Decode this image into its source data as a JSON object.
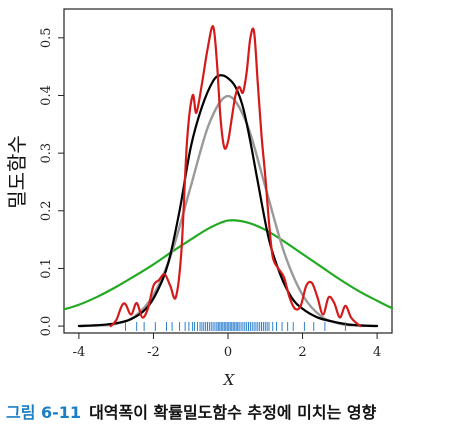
{
  "caption": {
    "number": "그림 6-11",
    "text": "대역폭이 확률밀도함수 추정에 미치는 영향"
  },
  "colors": {
    "frame": "#222222",
    "black_curve": "#000000",
    "gray_curve": "#9a9a9a",
    "red_curve": "#d41a1a",
    "green_curve": "#22aa22",
    "rug": "#2d7fd0",
    "caption_number": "#1b7fc4"
  },
  "chart_data": {
    "type": "line",
    "title": "",
    "xlabel": "X",
    "ylabel": "밀도함수",
    "xlim": [
      -4.4,
      4.4
    ],
    "ylim": [
      -0.012,
      0.55
    ],
    "x_ticks": [
      {
        "value": -4,
        "label": "-4"
      },
      {
        "value": -2,
        "label": "-2"
      },
      {
        "value": 0,
        "label": "0"
      },
      {
        "value": 2,
        "label": "2"
      },
      {
        "value": 4,
        "label": "4"
      }
    ],
    "y_ticks": [
      {
        "value": 0.0,
        "label": "0.0"
      },
      {
        "value": 0.1,
        "label": "0.1"
      },
      {
        "value": 0.2,
        "label": "0.2"
      },
      {
        "value": 0.3,
        "label": "0.3"
      },
      {
        "value": 0.4,
        "label": "0.4"
      },
      {
        "value": 0.5,
        "label": "0.5"
      }
    ],
    "grid": false,
    "legend": "none",
    "series": [
      {
        "color": "green",
        "x": [
          -4.4,
          -4.0,
          -3.5,
          -3.0,
          -2.5,
          -2.0,
          -1.5,
          -1.0,
          -0.5,
          0.0,
          0.5,
          1.0,
          1.5,
          2.0,
          2.5,
          3.0,
          3.5,
          4.0,
          4.4
        ],
        "y": [
          0.029,
          0.037,
          0.051,
          0.068,
          0.087,
          0.107,
          0.129,
          0.15,
          0.17,
          0.183,
          0.18,
          0.167,
          0.147,
          0.125,
          0.103,
          0.081,
          0.061,
          0.044,
          0.031
        ]
      },
      {
        "color": "gray",
        "x": [
          -4.0,
          -3.5,
          -3.0,
          -2.5,
          -2.0,
          -1.5,
          -1.0,
          -0.5,
          0.0,
          0.5,
          1.0,
          1.5,
          2.0,
          2.5,
          3.0,
          3.5,
          4.0
        ],
        "y": [
          0.0003,
          0.001,
          0.004,
          0.017,
          0.054,
          0.129,
          0.242,
          0.352,
          0.399,
          0.352,
          0.242,
          0.129,
          0.054,
          0.017,
          0.004,
          0.001,
          0.0003
        ]
      },
      {
        "color": "black",
        "x": [
          -4.0,
          -3.4,
          -3.0,
          -2.6,
          -2.2,
          -1.9,
          -1.6,
          -1.3,
          -1.0,
          -0.7,
          -0.4,
          -0.2,
          0.0,
          0.2,
          0.4,
          0.6,
          0.8,
          1.1,
          1.4,
          1.7,
          2.0,
          2.4,
          2.8,
          3.2,
          3.6,
          4.0
        ],
        "y": [
          0.0,
          0.002,
          0.005,
          0.012,
          0.03,
          0.06,
          0.11,
          0.2,
          0.31,
          0.38,
          0.425,
          0.435,
          0.43,
          0.415,
          0.38,
          0.32,
          0.25,
          0.15,
          0.09,
          0.05,
          0.03,
          0.015,
          0.008,
          0.003,
          0.001,
          0.0
        ]
      },
      {
        "color": "red",
        "x": [
          -3.15,
          -3.0,
          -2.85,
          -2.75,
          -2.6,
          -2.45,
          -2.3,
          -2.15,
          -2.0,
          -1.85,
          -1.7,
          -1.55,
          -1.4,
          -1.25,
          -1.1,
          -0.95,
          -0.85,
          -0.7,
          -0.55,
          -0.4,
          -0.3,
          -0.2,
          -0.1,
          0.0,
          0.1,
          0.2,
          0.3,
          0.4,
          0.5,
          0.6,
          0.7,
          0.8,
          0.9,
          1.0,
          1.1,
          1.2,
          1.35,
          1.5,
          1.65,
          1.8,
          1.95,
          2.1,
          2.25,
          2.4,
          2.55,
          2.7,
          2.85,
          3.0,
          3.15,
          3.3,
          3.45,
          3.55
        ],
        "y": [
          0.0,
          0.01,
          0.035,
          0.038,
          0.02,
          0.04,
          0.015,
          0.03,
          0.07,
          0.08,
          0.09,
          0.07,
          0.05,
          0.13,
          0.32,
          0.4,
          0.37,
          0.42,
          0.48,
          0.52,
          0.46,
          0.36,
          0.31,
          0.32,
          0.36,
          0.4,
          0.415,
          0.405,
          0.44,
          0.5,
          0.51,
          0.42,
          0.33,
          0.26,
          0.18,
          0.12,
          0.1,
          0.085,
          0.05,
          0.03,
          0.035,
          0.07,
          0.075,
          0.05,
          0.02,
          0.05,
          0.04,
          0.015,
          0.035,
          0.015,
          0.005,
          0.0
        ]
      }
    ],
    "rug": [
      -2.75,
      -2.45,
      -2.25,
      -1.95,
      -1.65,
      -1.5,
      -1.3,
      -1.15,
      -1.05,
      -0.95,
      -0.9,
      -0.82,
      -0.75,
      -0.7,
      -0.65,
      -0.6,
      -0.55,
      -0.5,
      -0.45,
      -0.4,
      -0.35,
      -0.3,
      -0.26,
      -0.22,
      -0.18,
      -0.14,
      -0.1,
      -0.06,
      -0.02,
      0.02,
      0.06,
      0.1,
      0.14,
      0.18,
      0.22,
      0.26,
      0.3,
      0.35,
      0.4,
      0.45,
      0.5,
      0.55,
      0.6,
      0.65,
      0.7,
      0.75,
      0.8,
      0.85,
      0.9,
      0.95,
      1.0,
      1.05,
      1.1,
      1.2,
      1.3,
      1.45,
      1.6,
      1.75,
      2.05,
      2.3,
      2.6,
      3.15
    ]
  }
}
